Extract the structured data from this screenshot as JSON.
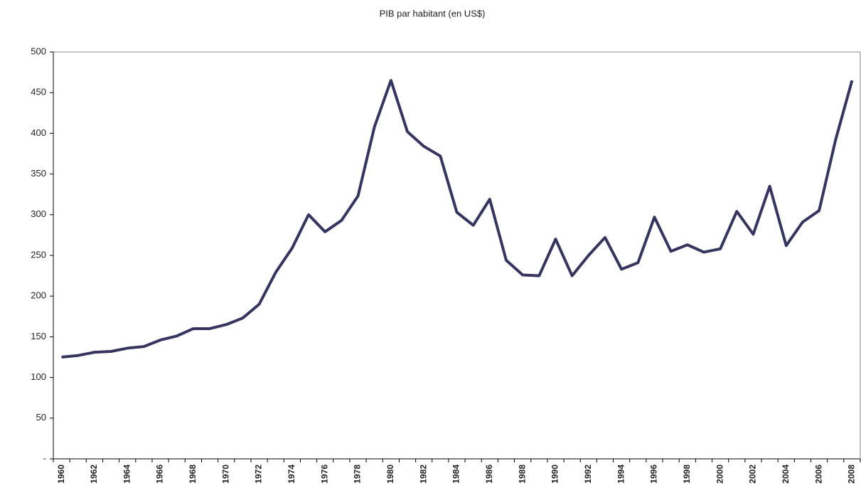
{
  "chart_data": {
    "type": "line",
    "title": "PIB par habitant (en US$)",
    "categories": [
      "1960",
      null,
      "1962",
      null,
      "1964",
      null,
      "1966",
      null,
      "1968",
      null,
      "1970",
      null,
      "1972",
      null,
      "1974",
      null,
      "1976",
      null,
      "1978",
      null,
      "1980",
      null,
      "1982",
      null,
      "1984",
      null,
      "1986",
      null,
      "1988",
      null,
      "1990",
      null,
      "1992",
      null,
      "1994",
      null,
      "1996",
      null,
      "1998",
      null,
      "2000",
      null,
      "2002",
      null,
      "2004",
      null,
      "2006",
      null,
      "2008"
    ],
    "values": [
      125,
      127,
      131,
      132,
      136,
      138,
      146,
      151,
      160,
      160,
      165,
      173,
      190,
      229,
      259,
      300,
      279,
      293,
      323,
      408,
      465,
      402,
      384,
      372,
      303,
      287,
      319,
      244,
      226,
      225,
      270,
      225,
      250,
      272,
      233,
      241,
      297,
      255,
      263,
      254,
      258,
      304,
      276,
      335,
      262,
      291,
      305,
      392,
      465
    ],
    "color": "#35355f",
    "ylim": [
      0,
      500
    ],
    "yticks": [
      {
        "value": 0,
        "label": "-"
      },
      50,
      100,
      150,
      200,
      250,
      300,
      350,
      400,
      450,
      500
    ],
    "grid": false
  }
}
